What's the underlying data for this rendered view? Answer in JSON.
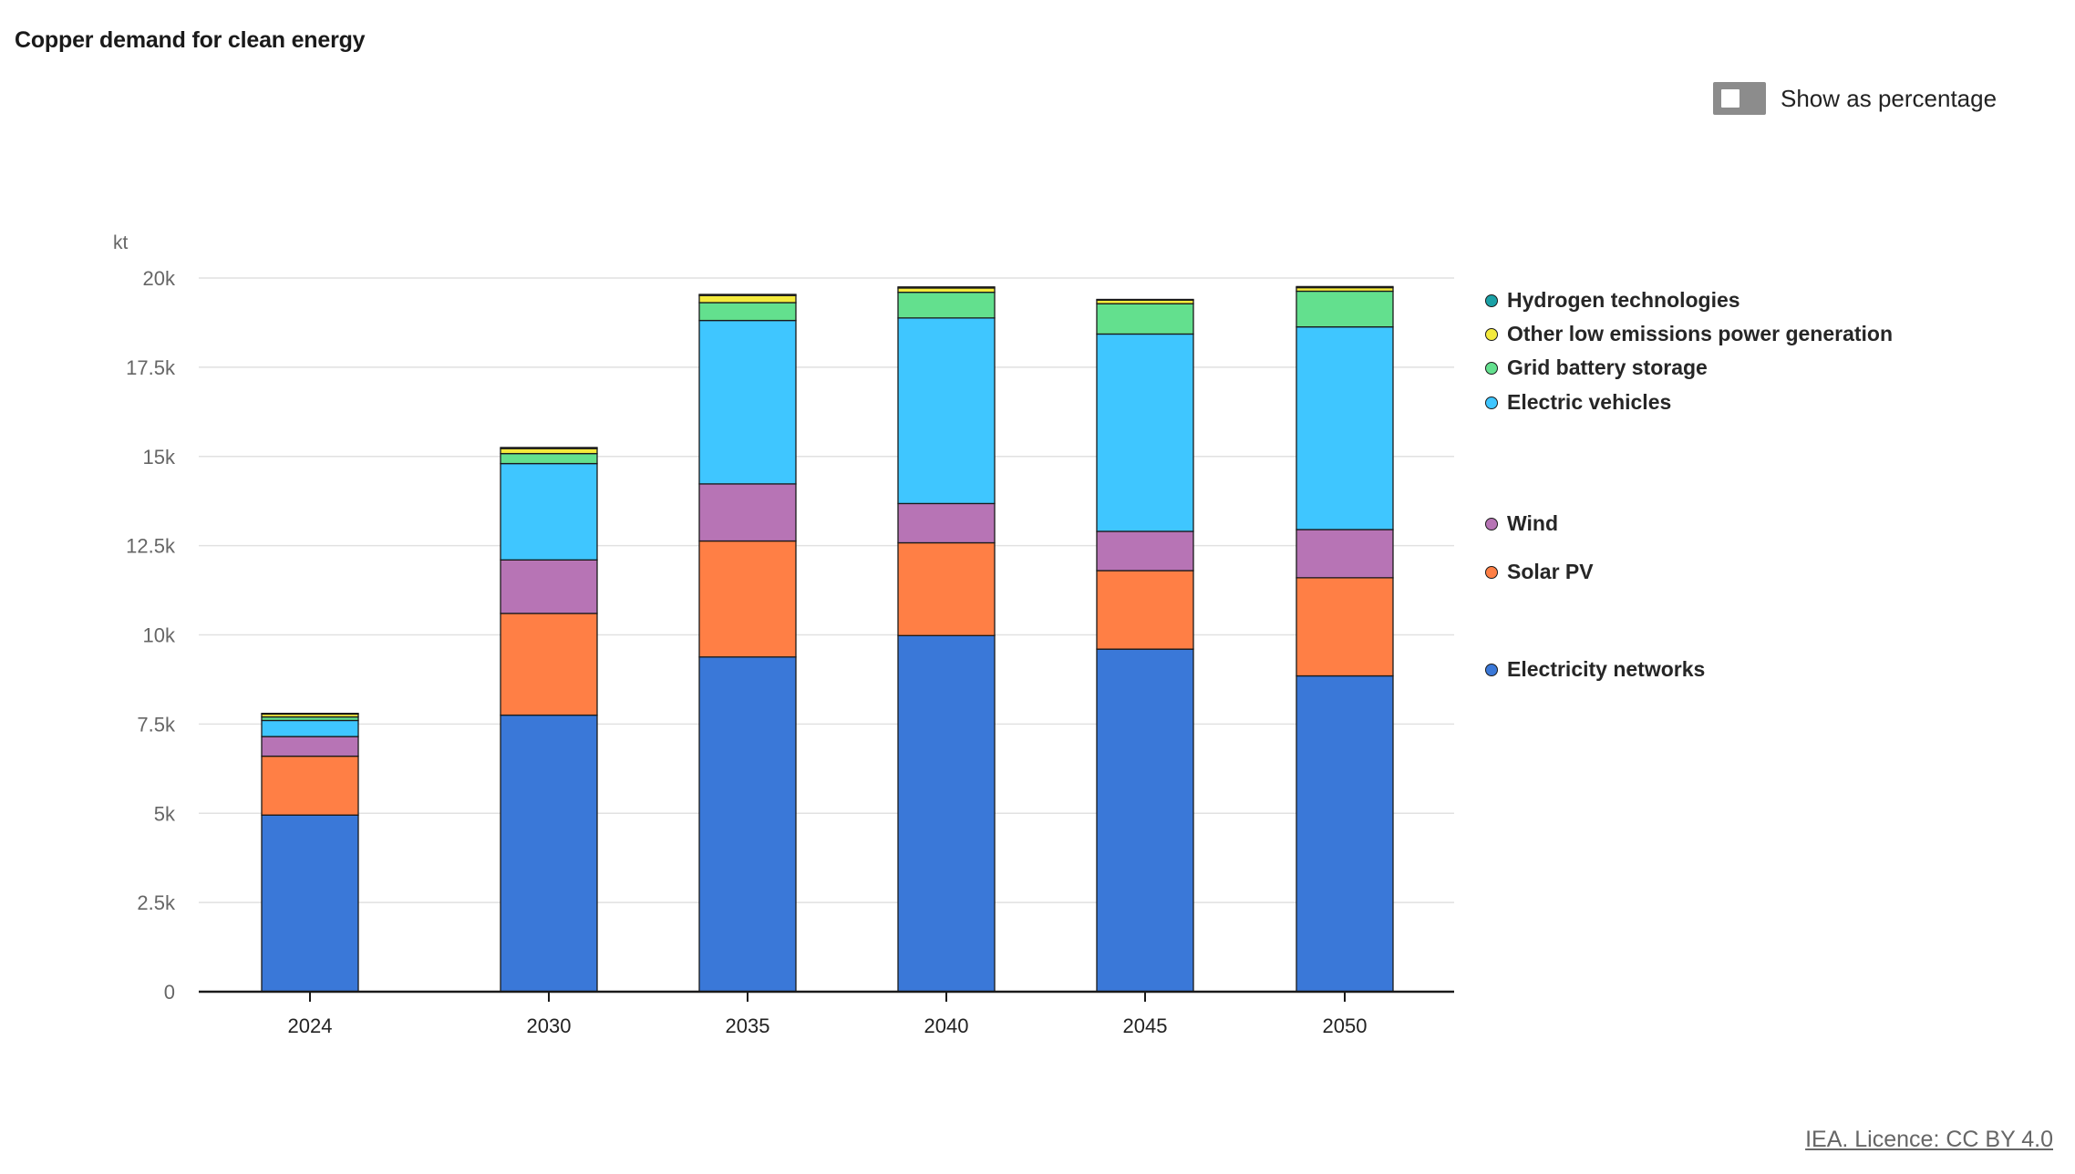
{
  "title": "Copper demand for clean energy",
  "toggle": {
    "label": "Show as percentage",
    "checked": false
  },
  "credit": "IEA. Licence: CC BY 4.0",
  "chart_data": {
    "type": "bar",
    "stacked": true,
    "unit_label": "kt",
    "categories": [
      "2024",
      "2030",
      "2035",
      "2040",
      "2045",
      "2050"
    ],
    "y_ticks": [
      "0",
      "2.5k",
      "5k",
      "7.5k",
      "10k",
      "12.5k",
      "15k",
      "17.5k",
      "20k"
    ],
    "ylim": [
      0,
      20000
    ],
    "grid": true,
    "legend_position": "right",
    "series": [
      {
        "name": "Electricity networks",
        "color": "#3a78d8",
        "values": [
          4950,
          7750,
          9380,
          9980,
          9600,
          8850
        ]
      },
      {
        "name": "Solar PV",
        "color": "#ff7f45",
        "values": [
          1650,
          2850,
          3250,
          2600,
          2200,
          2750
        ]
      },
      {
        "name": "Wind",
        "color": "#b774b5",
        "values": [
          550,
          1500,
          1600,
          1100,
          1100,
          1350
        ]
      },
      {
        "name": "Electric vehicles",
        "color": "#3fc6ff",
        "values": [
          450,
          2700,
          4580,
          5200,
          5530,
          5680
        ]
      },
      {
        "name": "Grid battery storage",
        "color": "#63e08e",
        "values": [
          100,
          280,
          500,
          720,
          850,
          1000
        ]
      },
      {
        "name": "Other low emissions power generation",
        "color": "#f4ea3c",
        "values": [
          80,
          140,
          200,
          120,
          100,
          100
        ]
      },
      {
        "name": "Hydrogen technologies",
        "color": "#1aa1a6",
        "values": [
          20,
          30,
          30,
          30,
          20,
          30
        ]
      }
    ]
  },
  "legend": [
    {
      "name": "Hydrogen technologies",
      "color": "#1aa1a6"
    },
    {
      "name": "Other low emissions power generation",
      "color": "#f4ea3c"
    },
    {
      "name": "Grid battery storage",
      "color": "#63e08e"
    },
    {
      "name": "Electric vehicles",
      "color": "#3fc6ff"
    },
    {
      "name": "Wind",
      "color": "#b774b5"
    },
    {
      "name": "Solar PV",
      "color": "#ff7f45"
    },
    {
      "name": "Electricity networks",
      "color": "#3a78d8"
    }
  ]
}
